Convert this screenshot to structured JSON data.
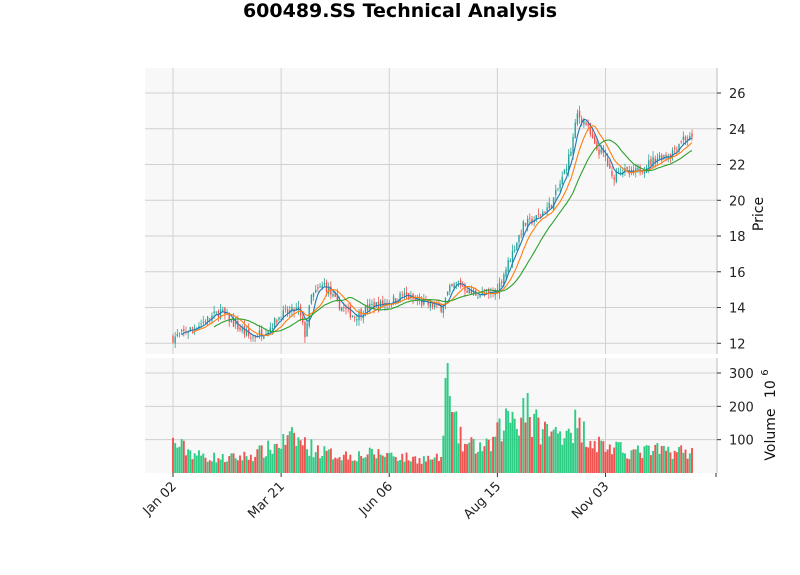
{
  "chart_data": {
    "type": "candlestick",
    "title": "600489.SS Technical Analysis",
    "price_panel": {
      "ylabel": "Price",
      "ylim": [
        11.4,
        27.4
      ],
      "yticks": [
        12,
        14,
        16,
        18,
        20,
        22,
        24,
        26
      ],
      "ytick_labels": [
        "12",
        "14",
        "16",
        "18",
        "20",
        "22",
        "24",
        "26"
      ],
      "grid": true
    },
    "volume_panel": {
      "ylabel": "Volume",
      "ylabel_exponent": "10",
      "ylabel_exponent_power": "6",
      "ylim": [
        0,
        345
      ],
      "yticks": [
        100,
        200,
        300
      ],
      "ytick_labels": [
        "100",
        "200",
        "300"
      ],
      "grid": true
    },
    "x_ticks": [
      {
        "index": 0,
        "label": "Jan 02"
      },
      {
        "index": 50,
        "label": "Mar 21"
      },
      {
        "index": 100,
        "label": "Jun 06"
      },
      {
        "index": 150,
        "label": "Aug 15"
      },
      {
        "index": 200,
        "label": "Nov 03"
      }
    ],
    "n_sessions": 241,
    "close_anchors": [
      [
        0,
        12.3
      ],
      [
        10,
        12.9
      ],
      [
        22,
        13.8
      ],
      [
        28,
        13.1
      ],
      [
        36,
        12.3
      ],
      [
        44,
        12.8
      ],
      [
        50,
        13.6
      ],
      [
        58,
        13.9
      ],
      [
        61,
        12.5
      ],
      [
        64,
        14.6
      ],
      [
        70,
        15.3
      ],
      [
        76,
        14.2
      ],
      [
        84,
        13.5
      ],
      [
        92,
        14.1
      ],
      [
        100,
        14.3
      ],
      [
        106,
        14.7
      ],
      [
        114,
        14.3
      ],
      [
        124,
        14.0
      ],
      [
        128,
        15.0
      ],
      [
        132,
        15.4
      ],
      [
        138,
        14.8
      ],
      [
        146,
        14.7
      ],
      [
        150,
        15.0
      ],
      [
        156,
        16.8
      ],
      [
        162,
        18.6
      ],
      [
        168,
        19.0
      ],
      [
        175,
        19.8
      ],
      [
        180,
        21.2
      ],
      [
        184,
        22.8
      ],
      [
        187,
        24.8
      ],
      [
        191,
        24.3
      ],
      [
        195,
        23.0
      ],
      [
        200,
        22.4
      ],
      [
        203,
        21.2
      ],
      [
        206,
        21.8
      ],
      [
        212,
        21.4
      ],
      [
        218,
        21.9
      ],
      [
        224,
        22.4
      ],
      [
        230,
        22.6
      ],
      [
        236,
        23.5
      ],
      [
        240,
        23.4
      ]
    ],
    "volume_anchors": [
      [
        0,
        95
      ],
      [
        12,
        55
      ],
      [
        24,
        45
      ],
      [
        36,
        55
      ],
      [
        44,
        75
      ],
      [
        50,
        95
      ],
      [
        56,
        110
      ],
      [
        64,
        80
      ],
      [
        72,
        60
      ],
      [
        84,
        55
      ],
      [
        92,
        60
      ],
      [
        100,
        60
      ],
      [
        110,
        45
      ],
      [
        124,
        45
      ],
      [
        126,
        230
      ],
      [
        134,
        90
      ],
      [
        140,
        85
      ],
      [
        146,
        80
      ],
      [
        150,
        120
      ],
      [
        156,
        190
      ],
      [
        162,
        160
      ],
      [
        168,
        150
      ],
      [
        176,
        120
      ],
      [
        184,
        150
      ],
      [
        190,
        130
      ],
      [
        196,
        95
      ],
      [
        204,
        75
      ],
      [
        214,
        65
      ],
      [
        222,
        70
      ],
      [
        232,
        70
      ],
      [
        240,
        65
      ]
    ],
    "volume_spikes": [
      [
        127,
        330
      ],
      [
        164,
        240
      ],
      [
        186,
        190
      ],
      [
        162,
        225
      ]
    ],
    "moving_averages": [
      {
        "window": 5,
        "color": "#1f77b4"
      },
      {
        "window": 10,
        "color": "#ff7f0e"
      },
      {
        "window": 20,
        "color": "#2ca02c"
      }
    ],
    "colors": {
      "up": "#26a69a",
      "down": "#ef5350",
      "volume_up": "#2ecc85",
      "volume_down": "#ef5350",
      "panel_bg": "#f8f8f8",
      "grid": "#d0d0d0"
    }
  }
}
